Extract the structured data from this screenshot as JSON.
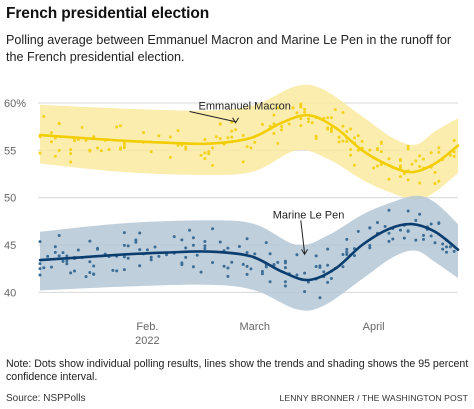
{
  "header": {
    "title": "French presidential election",
    "subtitle": "Polling average between Emmanuel Macron and Marine Le Pen in the runoff for the French presidential election."
  },
  "footer": {
    "note": "Note: Dots show individual polling results, lines show the trends and shading shows the 95 percent confidence interval.",
    "source": "Source: NSPPolls",
    "credit": "LENNY BRONNER / THE WASHINGTON POST"
  },
  "colors": {
    "macron_line": "#f2cd00",
    "macron_band": "#faeaa0",
    "macron_dot": "#f4d21a",
    "lepen_line": "#0b3e6f",
    "lepen_band": "#b4c7d6",
    "lepen_dot": "#3b6d96",
    "grid": "#d8d8d8"
  },
  "chart_data": {
    "type": "line",
    "x_axis": {
      "min": "2022-01-04",
      "max": "2022-04-23",
      "ticks": [
        {
          "date": "2022-02-01",
          "label": "Feb.",
          "sublabel": "2022"
        },
        {
          "date": "2022-03-01",
          "label": "March",
          "sublabel": ""
        },
        {
          "date": "2022-04-01",
          "label": "April",
          "sublabel": ""
        }
      ]
    },
    "y_axis": {
      "min": 37.5,
      "max": 62,
      "ticks": [
        {
          "value": 60,
          "label": "60%"
        },
        {
          "value": 55,
          "label": "55"
        },
        {
          "value": 50,
          "label": "50"
        },
        {
          "value": 45,
          "label": "45"
        },
        {
          "value": 40,
          "label": "40"
        }
      ]
    },
    "grid": true,
    "series": [
      {
        "name": "Emmanuel Macron",
        "trend": [
          [
            "2022-01-04",
            56.6
          ],
          [
            "2022-01-15",
            56.3
          ],
          [
            "2022-01-26",
            56.0
          ],
          [
            "2022-02-06",
            55.8
          ],
          [
            "2022-02-17",
            55.7
          ],
          [
            "2022-02-28",
            56.3
          ],
          [
            "2022-03-08",
            57.9
          ],
          [
            "2022-03-15",
            58.7
          ],
          [
            "2022-03-22",
            57.4
          ],
          [
            "2022-03-29",
            55.0
          ],
          [
            "2022-04-05",
            53.4
          ],
          [
            "2022-04-11",
            52.7
          ],
          [
            "2022-04-17",
            53.6
          ],
          [
            "2022-04-23",
            55.5
          ]
        ],
        "ci_upper": [
          [
            "2022-01-04",
            59.8
          ],
          [
            "2022-01-26",
            59.4
          ],
          [
            "2022-02-17",
            59.2
          ],
          [
            "2022-03-01",
            59.8
          ],
          [
            "2022-03-12",
            61.8
          ],
          [
            "2022-03-19",
            61.4
          ],
          [
            "2022-03-29",
            58.6
          ],
          [
            "2022-04-06",
            56.3
          ],
          [
            "2022-04-12",
            55.6
          ],
          [
            "2022-04-17",
            57.0
          ],
          [
            "2022-04-23",
            58.4
          ]
        ],
        "ci_lower": [
          [
            "2022-01-04",
            53.6
          ],
          [
            "2022-01-26",
            52.7
          ],
          [
            "2022-02-17",
            52.4
          ],
          [
            "2022-03-01",
            52.8
          ],
          [
            "2022-03-12",
            55.0
          ],
          [
            "2022-03-20",
            54.1
          ],
          [
            "2022-03-29",
            51.9
          ],
          [
            "2022-04-05",
            50.6
          ],
          [
            "2022-04-12",
            49.8
          ],
          [
            "2022-04-17",
            50.6
          ],
          [
            "2022-04-23",
            52.6
          ]
        ],
        "label_point": [
          "2022-02-24",
          57.7
        ],
        "label_anchor": [
          "2022-02-12",
          59.1
        ]
      },
      {
        "name": "Marine Le Pen",
        "trend": [
          [
            "2022-01-04",
            43.4
          ],
          [
            "2022-01-15",
            43.7
          ],
          [
            "2022-01-26",
            44.0
          ],
          [
            "2022-02-06",
            44.2
          ],
          [
            "2022-02-17",
            44.3
          ],
          [
            "2022-02-28",
            43.8
          ],
          [
            "2022-03-08",
            42.2
          ],
          [
            "2022-03-15",
            41.3
          ],
          [
            "2022-03-22",
            42.5
          ],
          [
            "2022-03-29",
            45.0
          ],
          [
            "2022-04-05",
            46.7
          ],
          [
            "2022-04-11",
            47.2
          ],
          [
            "2022-04-17",
            46.4
          ],
          [
            "2022-04-23",
            44.5
          ]
        ],
        "ci_upper": [
          [
            "2022-01-04",
            46.4
          ],
          [
            "2022-01-26",
            47.3
          ],
          [
            "2022-02-17",
            47.6
          ],
          [
            "2022-03-01",
            47.2
          ],
          [
            "2022-03-12",
            45.0
          ],
          [
            "2022-03-20",
            46.0
          ],
          [
            "2022-03-29",
            48.2
          ],
          [
            "2022-04-05",
            49.4
          ],
          [
            "2022-04-12",
            50.2
          ],
          [
            "2022-04-17",
            49.5
          ],
          [
            "2022-04-23",
            47.2
          ]
        ],
        "ci_lower": [
          [
            "2022-01-04",
            40.2
          ],
          [
            "2022-01-26",
            40.6
          ],
          [
            "2022-02-17",
            40.8
          ],
          [
            "2022-03-01",
            40.2
          ],
          [
            "2022-03-12",
            38.2
          ],
          [
            "2022-03-19",
            38.6
          ],
          [
            "2022-03-29",
            41.4
          ],
          [
            "2022-04-06",
            43.7
          ],
          [
            "2022-04-12",
            44.4
          ],
          [
            "2022-04-17",
            43.2
          ],
          [
            "2022-04-23",
            41.5
          ]
        ],
        "label_point": [
          "2022-03-14",
          43.8
        ],
        "label_anchor": [
          "2022-03-13",
          47.6
        ]
      }
    ]
  }
}
